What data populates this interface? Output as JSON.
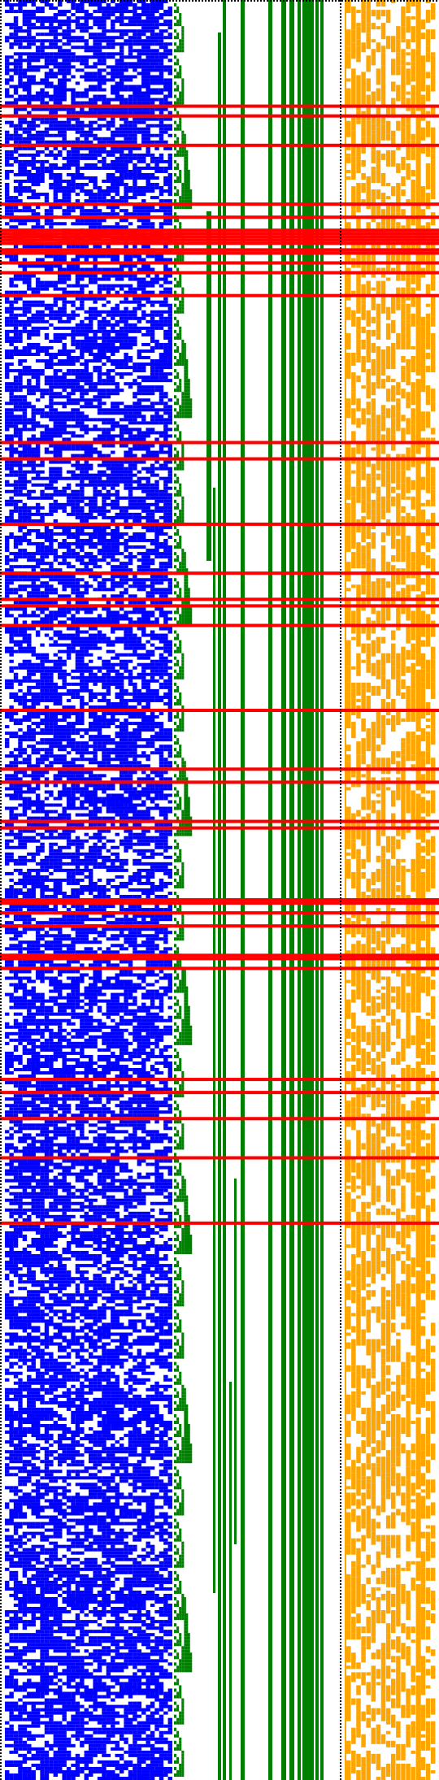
{
  "colors": {
    "background": "#ffffff",
    "noise_bits": "#0000ff",
    "staircase": "#008000",
    "bars": "#008000",
    "highlight_rows": "#ff0000",
    "right_bits": "#ffa500",
    "border_dots": "#000000"
  },
  "grid": {
    "rows": 545,
    "blue_columns": 38,
    "orange_columns": 18,
    "staircase_depth": 11,
    "seed": 7
  },
  "highlight_rows": [
    32,
    35,
    44,
    62,
    66,
    70,
    71,
    72,
    73,
    74,
    76,
    77,
    80,
    83,
    90,
    135,
    140,
    160,
    175,
    183,
    185,
    191,
    217,
    235,
    239,
    251,
    253,
    275,
    276,
    279,
    283,
    292,
    293,
    296,
    330,
    334,
    342,
    354,
    374
  ]
}
